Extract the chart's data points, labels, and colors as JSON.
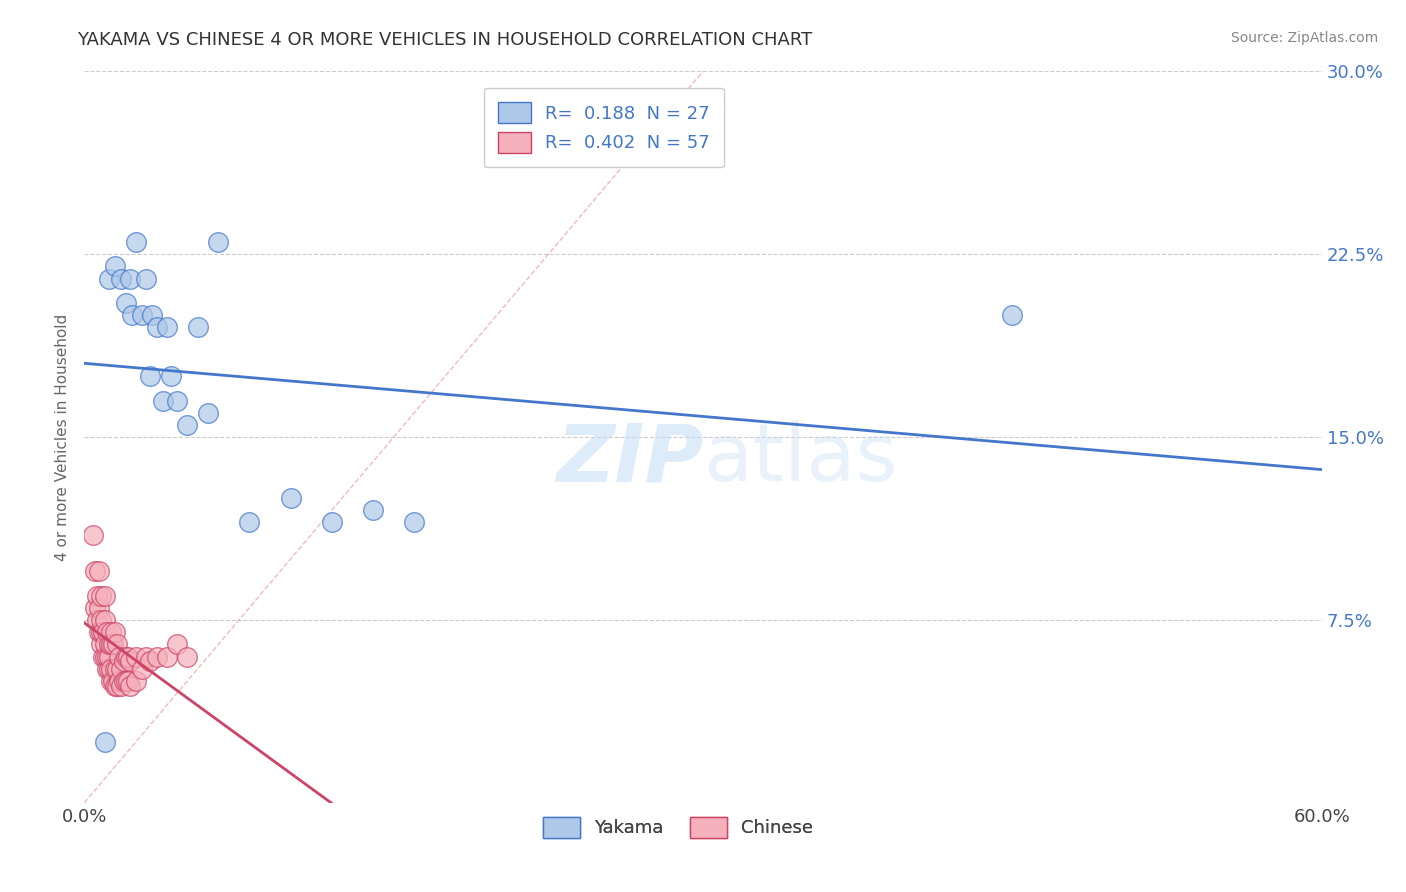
{
  "title": "YAKAMA VS CHINESE 4 OR MORE VEHICLES IN HOUSEHOLD CORRELATION CHART",
  "source": "Source: ZipAtlas.com",
  "ylabel": "4 or more Vehicles in Household",
  "xlim": [
    0.0,
    0.6
  ],
  "ylim": [
    0.0,
    0.3
  ],
  "xticks": [
    0.0,
    0.6
  ],
  "xtick_labels": [
    "0.0%",
    "60.0%"
  ],
  "ytick_labels": [
    "7.5%",
    "15.0%",
    "22.5%",
    "30.0%"
  ],
  "yticks": [
    0.075,
    0.15,
    0.225,
    0.3
  ],
  "legend_labels": [
    "Yakama",
    "Chinese"
  ],
  "r_yakama": "0.188",
  "n_yakama": "27",
  "r_chinese": "0.402",
  "n_chinese": "57",
  "color_yakama": "#adc8e8",
  "color_chinese": "#f5b0bb",
  "color_line_yakama": "#4477cc",
  "color_line_chinese": "#cc4466",
  "color_diag": "#f0aaaa",
  "watermark_zip": "ZIP",
  "watermark_atlas": "atlas",
  "background_color": "#ffffff",
  "grid_color": "#cccccc",
  "yakama_x": [
    0.01,
    0.012,
    0.015,
    0.018,
    0.02,
    0.022,
    0.023,
    0.025,
    0.028,
    0.03,
    0.032,
    0.033,
    0.035,
    0.038,
    0.04,
    0.042,
    0.045,
    0.05,
    0.055,
    0.06,
    0.065,
    0.08,
    0.1,
    0.12,
    0.14,
    0.16,
    0.45
  ],
  "yakama_y": [
    0.025,
    0.215,
    0.22,
    0.215,
    0.205,
    0.215,
    0.2,
    0.23,
    0.2,
    0.215,
    0.175,
    0.2,
    0.195,
    0.165,
    0.195,
    0.175,
    0.165,
    0.155,
    0.195,
    0.16,
    0.23,
    0.115,
    0.125,
    0.115,
    0.12,
    0.115,
    0.2
  ],
  "chinese_x": [
    0.004,
    0.005,
    0.005,
    0.006,
    0.006,
    0.007,
    0.007,
    0.007,
    0.008,
    0.008,
    0.008,
    0.008,
    0.009,
    0.009,
    0.01,
    0.01,
    0.01,
    0.01,
    0.011,
    0.011,
    0.011,
    0.012,
    0.012,
    0.012,
    0.013,
    0.013,
    0.013,
    0.013,
    0.014,
    0.014,
    0.015,
    0.015,
    0.015,
    0.016,
    0.016,
    0.016,
    0.017,
    0.017,
    0.018,
    0.018,
    0.019,
    0.019,
    0.02,
    0.02,
    0.021,
    0.021,
    0.022,
    0.022,
    0.025,
    0.025,
    0.028,
    0.03,
    0.032,
    0.035,
    0.04,
    0.045,
    0.05
  ],
  "chinese_y": [
    0.11,
    0.095,
    0.08,
    0.075,
    0.085,
    0.07,
    0.08,
    0.095,
    0.065,
    0.07,
    0.075,
    0.085,
    0.06,
    0.07,
    0.06,
    0.065,
    0.075,
    0.085,
    0.055,
    0.06,
    0.07,
    0.055,
    0.06,
    0.065,
    0.05,
    0.055,
    0.065,
    0.07,
    0.05,
    0.065,
    0.048,
    0.055,
    0.07,
    0.048,
    0.055,
    0.065,
    0.05,
    0.06,
    0.048,
    0.055,
    0.05,
    0.058,
    0.05,
    0.06,
    0.05,
    0.06,
    0.048,
    0.058,
    0.05,
    0.06,
    0.055,
    0.06,
    0.058,
    0.06,
    0.06,
    0.065,
    0.06
  ]
}
